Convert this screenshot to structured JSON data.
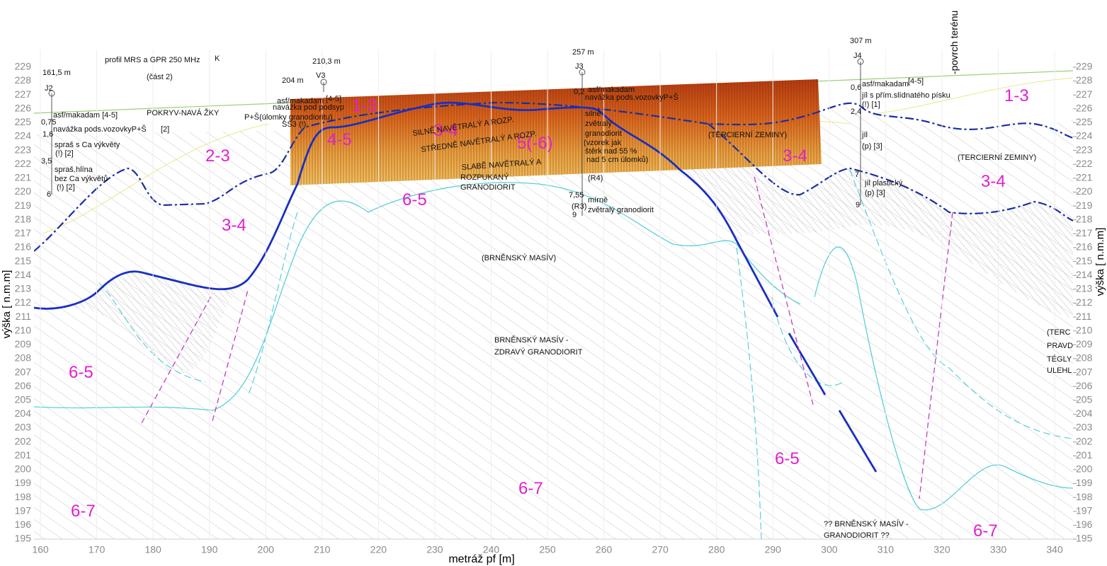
{
  "header": {
    "title": "profil MRS a GPR 250 MHz",
    "profile": "K",
    "part": "(část 2)"
  },
  "axes": {
    "x_label": "metráž pf [m]",
    "y_label": "výška [ n.m.m]",
    "x_ticks": [
      160,
      170,
      180,
      190,
      200,
      210,
      220,
      230,
      240,
      250,
      260,
      270,
      280,
      290,
      300,
      310,
      320,
      330,
      340
    ],
    "y_ticks": [
      195,
      196,
      197,
      198,
      199,
      200,
      201,
      202,
      203,
      204,
      205,
      206,
      207,
      208,
      209,
      210,
      211,
      212,
      213,
      214,
      215,
      216,
      217,
      218,
      219,
      220,
      221,
      222,
      223,
      224,
      225,
      226,
      227,
      228,
      229
    ]
  },
  "boreholes": [
    {
      "station": "161,5 m",
      "name": "J2",
      "log": [
        "asf/makadam [4-5]",
        "0,75",
        "navážka pods.vozovkyP+Š",
        "[2]",
        "1,6",
        "spraš s Ca výkvěty",
        "(!) [2]",
        "3,5",
        "spraš.hlína",
        "bez Ca výkvětů",
        "(!) [2]",
        "6"
      ]
    },
    {
      "station": "210,3 m",
      "name": "V3",
      "log": [
        "asf/makadam",
        "[4-5]",
        "navážka pod podsyp",
        "P+Š(úlomky granodioritu)",
        "SS3 (!)"
      ]
    },
    {
      "station": "257 m",
      "name": "J3",
      "log": [
        "0,2",
        "asf/makadam",
        "navážka pods.vozovkyP+Š",
        "silně",
        "zvětralý",
        "granodiorit",
        "(vzorek jak",
        "štěrk nad 55 %",
        "nad 5 cm úlomků)",
        "(R4)",
        "7,55",
        "mírně",
        "zvětralý granodiorit",
        "(R3)",
        "9"
      ]
    },
    {
      "station": "307 m",
      "name": "J4",
      "log": [
        "0,6",
        "asf/makadam",
        "[4-5]",
        "jíl s přím.slídnatého písku",
        "(!) [1]",
        "2,4",
        "jíl",
        "(p) [3]",
        "7",
        "jíl plastický",
        "(p) [3]",
        "9"
      ]
    }
  ],
  "markers": [
    "204 m",
    "-povrch terénu"
  ],
  "zones": [
    "1-3",
    "3-4",
    "4-5",
    "5(-6)",
    "2-3",
    "3-4",
    "6-5",
    "6-5",
    "6-7",
    "6-7",
    "1-3",
    "3-4",
    "3-4",
    "6-5",
    "6-7"
  ],
  "annotations": [
    "POKRYV-NAVÁ ŽKY",
    "SILNĚ NAVĚTRALÝ A ROZP.",
    "STŘEDNĚ NAVĚTRALÝ A ROZP.",
    "SLABĚ NAVĚTRALÝ A",
    "ROZPUKANÝ",
    "GRANODIORIT",
    "(TERCIERNÍ ZEMINY)",
    "(TERCIERNÍ ZEMINY)",
    "(BRNĚNSKÝ MASÍV)",
    "BRNĚNSKÝ MASÍV -",
    "ZDRAVÝ GRANODIORIT",
    "?? BRNĚNSKÝ MASÍV -",
    "GRANODIORIT ??",
    "(TERC",
    "PRAVD",
    "TÉGLY",
    "ULEHL"
  ]
}
